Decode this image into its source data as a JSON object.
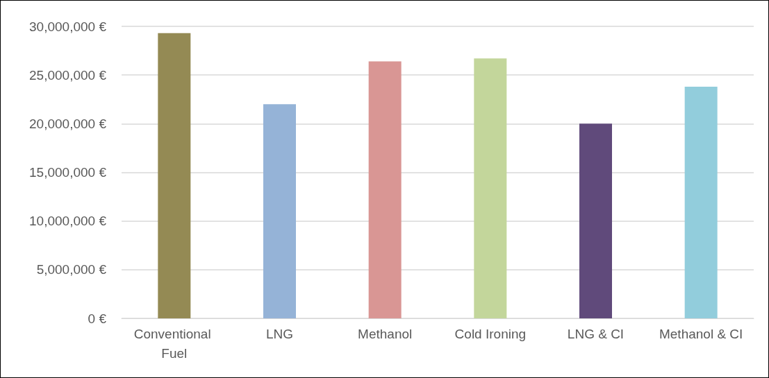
{
  "chart_data": {
    "type": "bar",
    "categories": [
      "Conventional Fuel",
      "LNG",
      "Methanol",
      "Cold Ironing",
      "LNG & CI",
      "Methanol & CI"
    ],
    "values": [
      29300000,
      22000000,
      26400000,
      26700000,
      20000000,
      23800000
    ],
    "colors": [
      "#948a54",
      "#95b3d7",
      "#d99694",
      "#c3d69b",
      "#604a7b",
      "#92cddc"
    ],
    "ylim": [
      0,
      30000000
    ],
    "yticks": [
      {
        "value": 0,
        "label": "0 €"
      },
      {
        "value": 5000000,
        "label": "5,000,000 €"
      },
      {
        "value": 10000000,
        "label": "10,000,000 €"
      },
      {
        "value": 15000000,
        "label": "15,000,000 €"
      },
      {
        "value": 20000000,
        "label": "20,000,000 €"
      },
      {
        "value": 25000000,
        "label": "25,000,000 €"
      },
      {
        "value": 30000000,
        "label": "30,000,000 €"
      }
    ],
    "grid": true
  }
}
